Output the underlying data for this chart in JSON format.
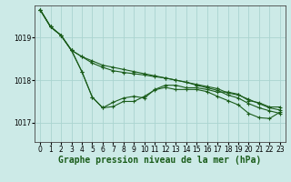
{
  "background_color": "#cceae7",
  "grid_color": "#aad4d0",
  "line_color": "#1a5c1a",
  "marker_color": "#1a5c1a",
  "xlabel": "Graphe pression niveau de la mer (hPa)",
  "xlabel_fontsize": 7,
  "tick_fontsize": 5.5,
  "xlim": [
    -0.5,
    23.5
  ],
  "ylim": [
    1016.55,
    1019.75
  ],
  "yticks": [
    1017,
    1018,
    1019
  ],
  "xticks": [
    0,
    1,
    2,
    3,
    4,
    5,
    6,
    7,
    8,
    9,
    10,
    11,
    12,
    13,
    14,
    15,
    16,
    17,
    18,
    19,
    20,
    21,
    22,
    23
  ],
  "series": [
    [
      1019.65,
      1019.25,
      1019.05,
      1018.7,
      1018.55,
      1018.45,
      1018.35,
      1018.3,
      1018.25,
      1018.2,
      1018.15,
      1018.1,
      1018.05,
      1018.0,
      1017.95,
      1017.9,
      1017.85,
      1017.8,
      1017.7,
      1017.65,
      1017.55,
      1017.45,
      1017.35,
      1017.3
    ],
    [
      1019.65,
      1019.25,
      1019.05,
      1018.7,
      1018.55,
      1018.4,
      1018.3,
      1018.22,
      1018.18,
      1018.15,
      1018.12,
      1018.08,
      1018.05,
      1018.0,
      1017.95,
      1017.88,
      1017.82,
      1017.76,
      1017.65,
      1017.58,
      1017.45,
      1017.35,
      1017.28,
      1017.22
    ],
    [
      1019.65,
      1019.25,
      1019.05,
      1018.7,
      1018.2,
      1017.6,
      1017.35,
      1017.38,
      1017.5,
      1017.5,
      1017.62,
      1017.77,
      1017.83,
      1017.78,
      1017.78,
      1017.78,
      1017.73,
      1017.62,
      1017.52,
      1017.42,
      1017.22,
      1017.12,
      1017.1,
      1017.25
    ],
    [
      1019.65,
      1019.25,
      1019.05,
      1018.7,
      1018.2,
      1017.6,
      1017.35,
      1017.48,
      1017.58,
      1017.62,
      1017.58,
      1017.78,
      1017.88,
      1017.88,
      1017.82,
      1017.82,
      1017.78,
      1017.72,
      1017.72,
      1017.67,
      1017.52,
      1017.47,
      1017.37,
      1017.37
    ]
  ]
}
